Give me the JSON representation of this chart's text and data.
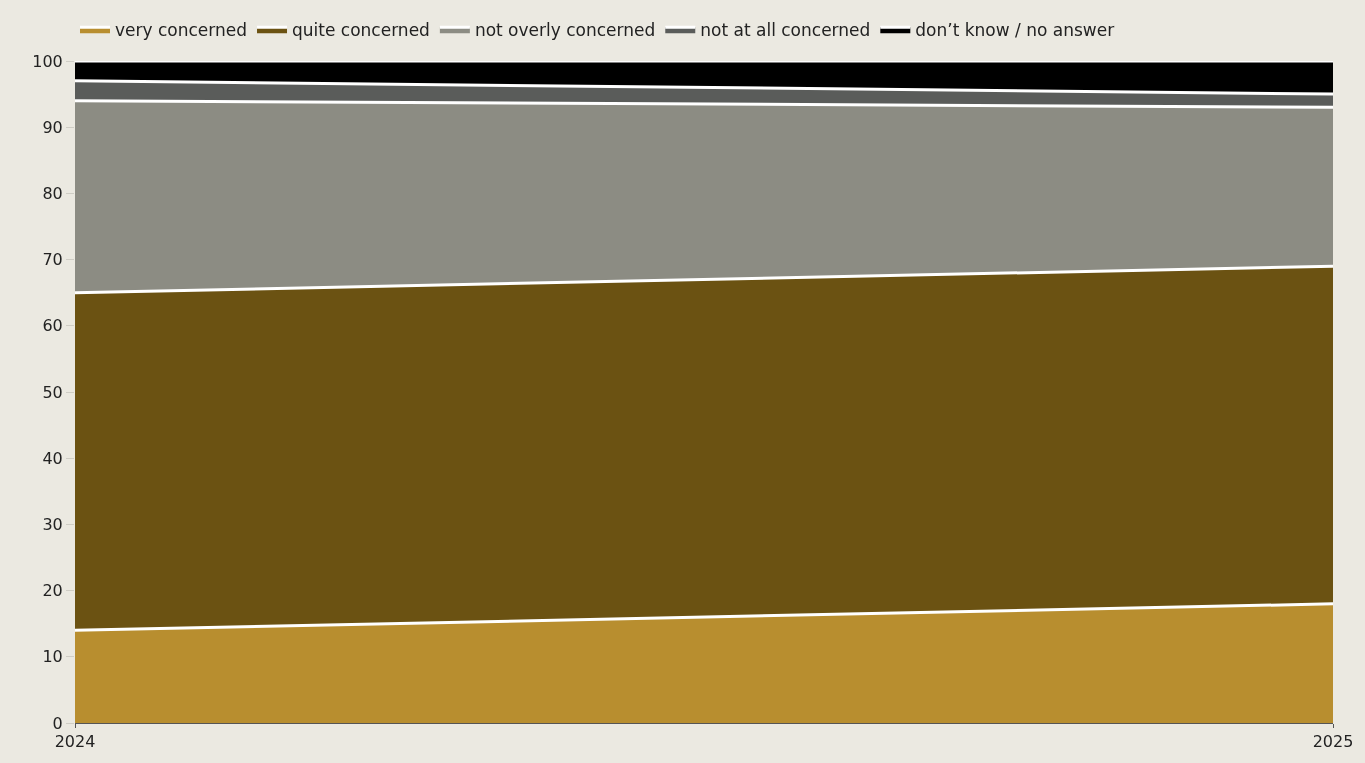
{
  "chart_data": {
    "type": "area",
    "stacked": true,
    "x": [
      2024,
      2025
    ],
    "series": [
      {
        "name": "very concerned",
        "color": "#b88e2f",
        "values": [
          14,
          18
        ]
      },
      {
        "name": "quite concerned",
        "color": "#6b5212",
        "values": [
          51,
          51
        ]
      },
      {
        "name": "not overly concerned",
        "color": "#8c8c83",
        "values": [
          29,
          24
        ]
      },
      {
        "name": "not at all concerned",
        "color": "#5a5c5a",
        "values": [
          3,
          2
        ]
      },
      {
        "name": "don’t know / no answer",
        "color": "#000000",
        "values": [
          3,
          5
        ]
      }
    ],
    "xlim": [
      2024,
      2025
    ],
    "xticks": [
      2024,
      2025
    ],
    "ylim": [
      0,
      100
    ],
    "yticks": [
      0,
      10,
      20,
      30,
      40,
      50,
      60,
      70,
      80,
      90,
      100
    ],
    "legend": "top left"
  }
}
